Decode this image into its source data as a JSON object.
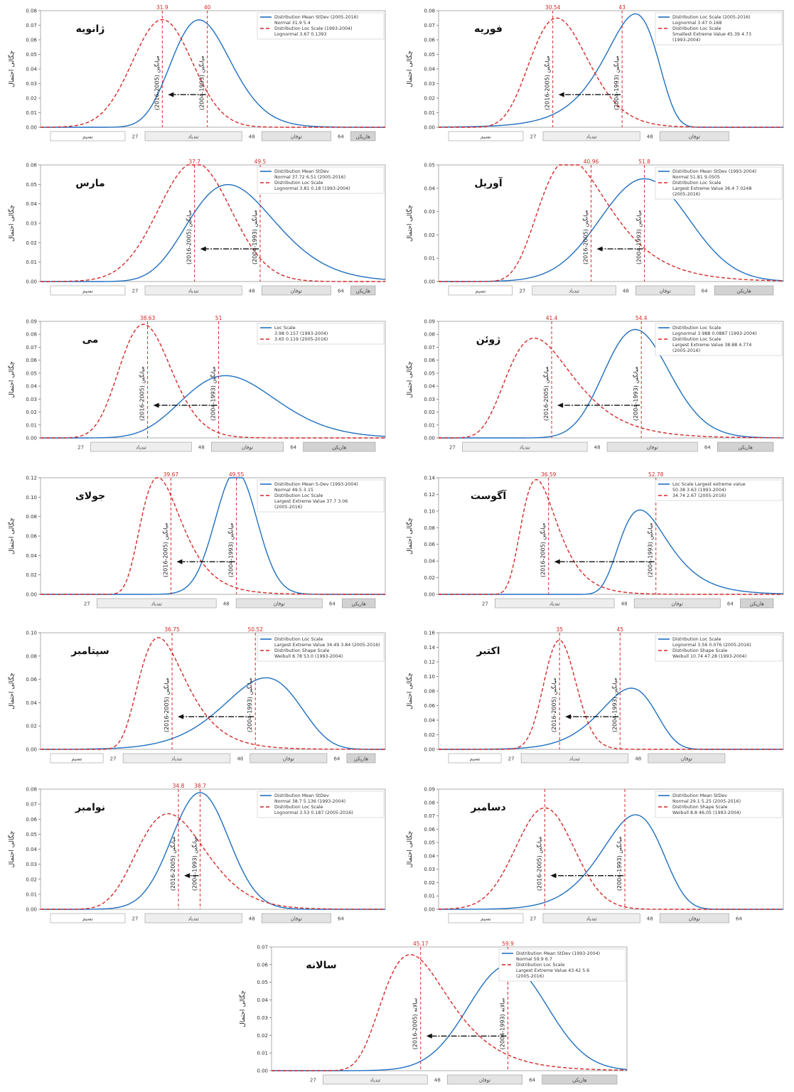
{
  "colors": {
    "blue": "#1f6fc0",
    "red": "#d62728",
    "band_white": "#ffffff",
    "band_light": "#eeeeee",
    "band_mid": "#e3e3e3",
    "band_dark": "#d2d2d2"
  },
  "y_axis_label": "چگالی احتمال",
  "band_labels": [
    "نسیم",
    "تندباد",
    "توفان",
    "هاریکن"
  ],
  "band_breaks": [
    "27",
    "48",
    "64"
  ],
  "chart_data": [
    {
      "type": "line",
      "month": "ژانویه",
      "ylim": [
        0,
        0.08
      ],
      "yticks": [
        "0.00",
        "0.01",
        "0.02",
        "0.03",
        "0.04",
        "0.05",
        "0.06",
        "0.07",
        "0.08"
      ],
      "xlim": [
        10,
        72
      ],
      "bands": [
        0,
        1,
        2,
        3
      ],
      "band_breaks": [
        0,
        1,
        2
      ],
      "mean_labels": {
        "old": "40",
        "new": "31.9"
      },
      "period_labels": {
        "old": "(2004-1993) میانگین",
        "new": "(2016-2005) میانگین"
      },
      "legend": [
        "Distribution   Mean  StDev   (2005-2016)",
        "Normal            31.9   5.4",
        "Distribution   Loc     Scale   (1993-2004)",
        "Lognormal        3.67   0.1393"
      ],
      "series": [
        {
          "name": "(1993-2004)",
          "dist": "lognormal",
          "p1": 3.67,
          "p2": 0.1393,
          "mean": 40,
          "color": "blue",
          "dash": ""
        },
        {
          "name": "(2005-2016)",
          "dist": "normal",
          "p1": 31.9,
          "p2": 5.4,
          "mean": 31.9,
          "color": "red",
          "dash": "5,3"
        }
      ]
    },
    {
      "type": "line",
      "month": "فوریه",
      "ylim": [
        0,
        0.08
      ],
      "yticks": [
        "0.00",
        "0.01",
        "0.02",
        "0.03",
        "0.04",
        "0.05",
        "0.06",
        "0.07",
        "0.08"
      ],
      "xlim": [
        10,
        72
      ],
      "bands": [
        0,
        1,
        2
      ],
      "band_breaks": [
        0,
        1
      ],
      "mean_labels": {
        "old": "43",
        "new": "30.54"
      },
      "period_labels": {
        "old": "(2004-1993) میانگین",
        "new": "(2016-2005) میانگین"
      },
      "legend": [
        "Distribution   Loc   Scale (2005-2016)",
        "Lognormal        3.47   0.168",
        "Distribution              Loc    Scale",
        "Smallest Extreme Value  45.39   4.73",
        "(1993-2004)"
      ],
      "series": [
        {
          "name": "(1993-2004)",
          "dist": "sev",
          "p1": 45.39,
          "p2": 4.73,
          "mean": 43,
          "color": "blue",
          "dash": ""
        },
        {
          "name": "(2005-2016)",
          "dist": "lognormal",
          "p1": 3.47,
          "p2": 0.168,
          "mean": 30.54,
          "color": "red",
          "dash": "5,3"
        }
      ]
    },
    {
      "type": "line",
      "month": "مارس",
      "ylim": [
        0,
        0.06
      ],
      "yticks": [
        "0.00",
        "0.01",
        "0.02",
        "0.03",
        "0.04",
        "0.05",
        "0.06"
      ],
      "xlim": [
        10,
        72
      ],
      "bands": [
        0,
        1,
        2,
        3
      ],
      "band_breaks": [
        0,
        1,
        2
      ],
      "mean_labels": {
        "old": "49.5",
        "new": "37.7"
      },
      "period_labels": {
        "old": "(2004-1993) میانگین",
        "new": "(2016-2005) میانگین"
      },
      "legend": [
        "Distribution   Mean   StDev",
        "Normal            37.72   6.51 (2005-2016)",
        "Distribution   Loc     Scale",
        "Lognormal        3.81   0.18   (1993-2004)"
      ],
      "series": [
        {
          "name": "(1993-2004)",
          "dist": "lognormal",
          "p1": 3.81,
          "p2": 0.18,
          "mean": 49.5,
          "color": "blue",
          "dash": ""
        },
        {
          "name": "(2005-2016)",
          "dist": "normal",
          "p1": 37.72,
          "p2": 6.51,
          "mean": 37.7,
          "color": "red",
          "dash": "5,3"
        }
      ]
    },
    {
      "type": "line",
      "month": "آوریل",
      "ylim": [
        0,
        0.05
      ],
      "yticks": [
        "0.00",
        "0.01",
        "0.02",
        "0.03",
        "0.04",
        "0.05"
      ],
      "xlim": [
        10,
        80
      ],
      "bands": [
        0,
        1,
        2,
        3
      ],
      "band_breaks": [
        0,
        1,
        2
      ],
      "mean_labels": {
        "old": "51.8",
        "new": "40.96"
      },
      "period_labels": {
        "old": "(2004-1993) میانگین",
        "new": "(2016-2005) میانگین"
      },
      "legend": [
        "Distribution  Mean  StDev    (1993-2004)",
        "Normal          51.81  9.0505",
        "Distribution              Loc    Scale",
        "Largest Extreme Value  36.4  7.0248",
        "(2005-2016)"
      ],
      "series": [
        {
          "name": "(1993-2004)",
          "dist": "normal",
          "p1": 51.81,
          "p2": 9.0505,
          "mean": 51.8,
          "color": "blue",
          "dash": ""
        },
        {
          "name": "(2005-2016)",
          "dist": "lev",
          "p1": 36.4,
          "p2": 7.0248,
          "mean": 40.96,
          "color": "red",
          "dash": "5,3"
        }
      ]
    },
    {
      "type": "line",
      "month": "می",
      "ylim": [
        0,
        0.09
      ],
      "yticks": [
        "0.00",
        "0.01",
        "0.02",
        "0.03",
        "0.04",
        "0.05",
        "0.06",
        "0.07",
        "0.08",
        "0.09"
      ],
      "xlim": [
        20,
        80
      ],
      "bands": [
        1,
        2,
        3
      ],
      "band_breaks": [
        0,
        1,
        2
      ],
      "mean_labels": {
        "old": "51",
        "new": "38.63"
      },
      "period_labels": {
        "old": "(2004-1993) میانگین",
        "new": "(2016-2005) میانگین"
      },
      "legend": [
        "Loc   Scale",
        "3.98   0.157   (1993-2004)",
        "3.65   0.119   (2005-2016)"
      ],
      "series": [
        {
          "name": "(1993-2004)",
          "dist": "lognormal",
          "p1": 3.98,
          "p2": 0.157,
          "mean": 51,
          "color": "blue",
          "dash": ""
        },
        {
          "name": "(2005-2016)",
          "dist": "lognormal",
          "p1": 3.65,
          "p2": 0.119,
          "mean": 38.63,
          "color": "red",
          "dash": "5,3"
        }
      ]
    },
    {
      "type": "line",
      "month": "ژوئن",
      "ylim": [
        0,
        0.09
      ],
      "yticks": [
        "0.00",
        "0.01",
        "0.02",
        "0.03",
        "0.04",
        "0.05",
        "0.06",
        "0.07",
        "0.08",
        "0.09"
      ],
      "xlim": [
        25,
        75
      ],
      "bands": [
        1,
        2,
        3
      ],
      "band_breaks": [
        0,
        1,
        2
      ],
      "mean_labels": {
        "old": "54.4",
        "new": "41.4"
      },
      "period_labels": {
        "old": "(2004-1993) میانگین",
        "new": "(2016-2005) میانگین"
      },
      "legend": [
        "Distribution  Loc    Scale",
        "Lognormal    3.988   0.0887   (1993-2004)",
        "Distribution               Loc     Scale",
        "Largest Extreme Value  38.88   4.774",
        "(2005-2016)"
      ],
      "series": [
        {
          "name": "(1993-2004)",
          "dist": "lognormal",
          "p1": 3.988,
          "p2": 0.0887,
          "mean": 54.4,
          "color": "blue",
          "dash": ""
        },
        {
          "name": "(2005-2016)",
          "dist": "lev",
          "p1": 38.88,
          "p2": 4.774,
          "mean": 41.4,
          "color": "red",
          "dash": "5,3"
        }
      ]
    },
    {
      "type": "line",
      "month": "جولای",
      "ylim": [
        0,
        0.12
      ],
      "yticks": [
        "0.00",
        "0.02",
        "0.04",
        "0.06",
        "0.08",
        "0.10",
        "0.12"
      ],
      "xlim": [
        20,
        72
      ],
      "bands": [
        1,
        2,
        3
      ],
      "band_breaks": [
        0,
        1,
        2
      ],
      "mean_labels": {
        "old": "49.55",
        "new": "39.67"
      },
      "period_labels": {
        "old": "(2004-1993) میانگین",
        "new": "(2016-2005) میانگین"
      },
      "legend": [
        "Distribution   Mean  S-Dev (1993-2004)",
        "Normal            49.5   3.15",
        "Distribution              Loc   Scale",
        "Largest Extreme Value  37.7   3.06",
        "(2005-2016)"
      ],
      "series": [
        {
          "name": "(1993-2004)",
          "dist": "normal",
          "p1": 49.5,
          "p2": 3.15,
          "mean": 49.55,
          "color": "blue",
          "dash": ""
        },
        {
          "name": "(2005-2016)",
          "dist": "lev",
          "p1": 37.7,
          "p2": 3.06,
          "mean": 39.67,
          "color": "red",
          "dash": "5,3"
        }
      ]
    },
    {
      "type": "line",
      "month": "آگوست",
      "ylim": [
        0,
        0.14
      ],
      "yticks": [
        "0.00",
        "0.02",
        "0.04",
        "0.06",
        "0.08",
        "0.10",
        "0.12",
        "0.14"
      ],
      "xlim": [
        20,
        72
      ],
      "bands": [
        1,
        2,
        3
      ],
      "band_breaks": [
        0,
        1,
        2
      ],
      "mean_labels": {
        "old": "52.78",
        "new": "36.59"
      },
      "period_labels": {
        "old": "(2004-1993) میانگین",
        "new": "(2016-2005) میانگین"
      },
      "legend": [
        "Loc    Scale  Largest extreme value",
        "50.38   3.63            (1993-2004)",
        "34.74   2.67            (2005-2016)"
      ],
      "series": [
        {
          "name": "(1993-2004)",
          "dist": "lev",
          "p1": 50.38,
          "p2": 3.63,
          "mean": 52.78,
          "color": "blue",
          "dash": ""
        },
        {
          "name": "(2005-2016)",
          "dist": "lev",
          "p1": 34.74,
          "p2": 2.67,
          "mean": 36.59,
          "color": "red",
          "dash": "5,3"
        }
      ]
    },
    {
      "type": "line",
      "month": "سپتامبر",
      "ylim": [
        0,
        0.1
      ],
      "yticks": [
        "0.00",
        "0.02",
        "0.04",
        "0.06",
        "0.08",
        "0.10"
      ],
      "xlim": [
        15,
        72
      ],
      "bands": [
        0,
        1,
        2,
        3
      ],
      "band_breaks": [
        0,
        1,
        2
      ],
      "mean_labels": {
        "old": "50.52",
        "new": "36.75"
      },
      "period_labels": {
        "old": "(2004-1993) میانگین",
        "new": "(2016-2005) میانگین"
      },
      "legend": [
        "Distribution                    Loc   Scale",
        "Largest Extreme Value  34.49  3.84   (2005-2016)",
        "Distribution   Shape  Scale",
        "Weibull            8.78   53.0          (1993-2004)"
      ],
      "series": [
        {
          "name": "(1993-2004)",
          "dist": "weibull",
          "p1": 8.78,
          "p2": 53.0,
          "mean": 50.52,
          "color": "blue",
          "dash": ""
        },
        {
          "name": "(2005-2016)",
          "dist": "lev",
          "p1": 34.49,
          "p2": 3.84,
          "mean": 36.75,
          "color": "red",
          "dash": "5,3"
        }
      ]
    },
    {
      "type": "line",
      "month": "اکتبر",
      "ylim": [
        0,
        0.16
      ],
      "yticks": [
        "0.00",
        "0.02",
        "0.04",
        "0.06",
        "0.08",
        "0.10",
        "0.12",
        "0.14",
        "0.16"
      ],
      "xlim": [
        15,
        72
      ],
      "bands": [
        0,
        1,
        2
      ],
      "band_breaks": [
        0,
        1
      ],
      "mean_labels": {
        "old": "45",
        "new": "35"
      },
      "period_labels": {
        "old": "(2004-1993) میانگین",
        "new": "(2016-2005) میانگین"
      },
      "legend": [
        "Distribution   Loc    Scale",
        "Lognormal        3.56   0.076     (2005-2016)",
        "Distribution   Shape  Scale",
        "Weibull            10.74   47.28     (1993-2004)"
      ],
      "series": [
        {
          "name": "(1993-2004)",
          "dist": "weibull",
          "p1": 10.74,
          "p2": 47.28,
          "mean": 45,
          "color": "blue",
          "dash": ""
        },
        {
          "name": "(2005-2016)",
          "dist": "lognormal",
          "p1": 3.56,
          "p2": 0.076,
          "mean": 35,
          "color": "red",
          "dash": "5,3"
        }
      ]
    },
    {
      "type": "line",
      "month": "نوامبر",
      "ylim": [
        0,
        0.08
      ],
      "yticks": [
        "0.00",
        "0.01",
        "0.02",
        "0.03",
        "0.04",
        "0.05",
        "0.06",
        "0.07",
        "0.08"
      ],
      "xlim": [
        10,
        72
      ],
      "bands": [
        0,
        1,
        2
      ],
      "band_breaks": [
        0,
        1,
        2
      ],
      "mean_labels": {
        "old": "38.7",
        "new": "34.8"
      },
      "period_labels": {
        "old": "(2004-1993) میانگین",
        "new": "(2016-2005) میانگین"
      },
      "legend": [
        "Distribution   Mean   StDev",
        "Normal            38.7   5.136   (1993-2004)",
        "Distribution   Loc     Scale",
        "Lognormal        3.53   0.187   (2005-2016)"
      ],
      "series": [
        {
          "name": "(1993-2004)",
          "dist": "normal",
          "p1": 38.7,
          "p2": 5.136,
          "mean": 38.7,
          "color": "blue",
          "dash": ""
        },
        {
          "name": "(2005-2016)",
          "dist": "lognormal",
          "p1": 3.53,
          "p2": 0.187,
          "mean": 34.8,
          "color": "red",
          "dash": "5,3"
        }
      ]
    },
    {
      "type": "line",
      "month": "دسامبر",
      "ylim": [
        0,
        0.09
      ],
      "yticks": [
        "0.00",
        "0.01",
        "0.02",
        "0.03",
        "0.04",
        "0.05",
        "0.06",
        "0.07",
        "0.08",
        "0.09"
      ],
      "xlim": [
        10,
        72
      ],
      "bands": [
        0,
        1,
        2
      ],
      "band_breaks": [
        0,
        1,
        2
      ],
      "mean_labels": {
        "old": "",
        "new": ""
      },
      "period_labels": {
        "old": "(2004-1993) میانگین",
        "new": "(2016-2005) میانگین"
      },
      "legend": [
        "Distribution   Mean   StDev",
        "Normal            29.1   5.25     (2005-2016)",
        "Distribution   Shape  Scale",
        "Weibull            8.8     46.05     (1993-2004)"
      ],
      "series": [
        {
          "name": "(1993-2004)",
          "dist": "weibull",
          "p1": 8.8,
          "p2": 46.05,
          "mean": 43.5,
          "color": "blue",
          "dash": ""
        },
        {
          "name": "(2005-2016)",
          "dist": "normal",
          "p1": 29.1,
          "p2": 5.25,
          "mean": 29.1,
          "color": "red",
          "dash": "5,3"
        }
      ]
    },
    {
      "type": "line",
      "month": "سالانه",
      "ylim": [
        0,
        0.07
      ],
      "yticks": [
        "0.00",
        "0.01",
        "0.02",
        "0.03",
        "0.04",
        "0.05",
        "0.06",
        "0.07"
      ],
      "xlim": [
        20,
        80
      ],
      "bands": [
        1,
        2,
        3
      ],
      "band_breaks": [
        0,
        1,
        2
      ],
      "mean_labels": {
        "old": "59.9",
        "new": "45.17"
      },
      "period_labels": {
        "old": "(2004-1993) سالانه",
        "new": "(2016-2005) سالانه"
      },
      "legend": [
        "Distribution  Mean  StDev     (1993-2004)",
        "Normal          59.9   6.7",
        "Distribution                 Loc   Scale",
        "Largest Extreme Value  43.42  5.6",
        "(2005-2016)"
      ],
      "series": [
        {
          "name": "(1993-2004)",
          "dist": "normal",
          "p1": 59.9,
          "p2": 6.7,
          "mean": 59.9,
          "color": "blue",
          "dash": ""
        },
        {
          "name": "(2005-2016)",
          "dist": "lev",
          "p1": 43.42,
          "p2": 5.6,
          "mean": 45.17,
          "color": "red",
          "dash": "5,3"
        }
      ]
    }
  ]
}
